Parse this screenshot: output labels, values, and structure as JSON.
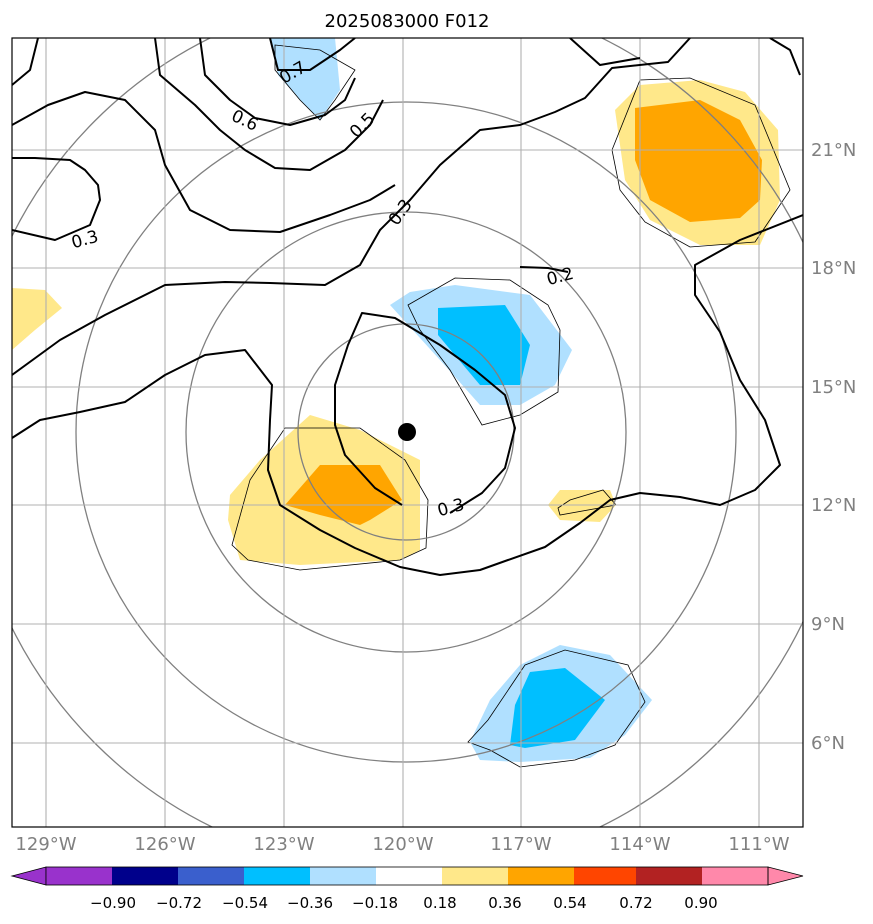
{
  "title": "2025083000 F012",
  "lon_labels": [
    "129°W",
    "126°W",
    "123°W",
    "120°W",
    "117°W",
    "114°W",
    "111°W"
  ],
  "lat_labels": [
    "21°N",
    "18°N",
    "15°N",
    "12°N",
    "9°N",
    "6°N"
  ],
  "colorbar": {
    "ticks": [
      "−0.90",
      "−0.72",
      "−0.54",
      "−0.36",
      "−0.18",
      "0.18",
      "0.36",
      "0.54",
      "0.72",
      "0.90"
    ],
    "colors": [
      "#9932cc",
      "#00008b",
      "#3a5fcd",
      "#00bfff",
      "#b0e0ff",
      "#ffffff",
      "#ffe88a",
      "#ffa500",
      "#ff4500",
      "#b22222",
      "#ff88aa"
    ]
  },
  "contour_labels": [
    "0.7",
    "0.6",
    "0.5",
    "0.3",
    "0.3",
    "0.2",
    "0.3"
  ],
  "storm_center": {
    "lat": "13.9°N",
    "lon": "119.9°W"
  },
  "fill_colors": {
    "light_blue": "#b0e0ff",
    "blue": "#00bfff",
    "light_yellow": "#ffe88a",
    "orange": "#ffa500"
  }
}
